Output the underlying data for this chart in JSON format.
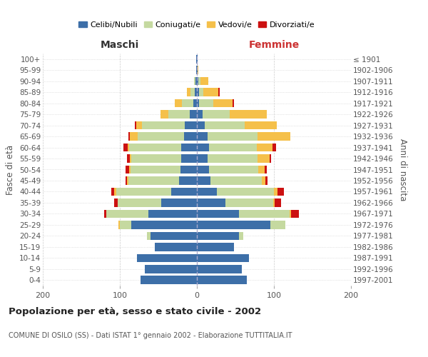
{
  "age_groups": [
    "0-4",
    "5-9",
    "10-14",
    "15-19",
    "20-24",
    "25-29",
    "30-34",
    "35-39",
    "40-44",
    "45-49",
    "50-54",
    "55-59",
    "60-64",
    "65-69",
    "70-74",
    "75-79",
    "80-84",
    "85-89",
    "90-94",
    "95-99",
    "100+"
  ],
  "birth_years": [
    "1997-2001",
    "1992-1996",
    "1987-1991",
    "1982-1986",
    "1977-1981",
    "1972-1976",
    "1967-1971",
    "1962-1966",
    "1957-1961",
    "1952-1956",
    "1947-1951",
    "1942-1946",
    "1937-1941",
    "1932-1936",
    "1927-1931",
    "1922-1926",
    "1917-1921",
    "1912-1916",
    "1907-1911",
    "1902-1906",
    "≤ 1901"
  ],
  "males": {
    "celibi": [
      73,
      68,
      78,
      55,
      60,
      85,
      63,
      46,
      33,
      23,
      21,
      20,
      20,
      17,
      16,
      9,
      5,
      3,
      2,
      1,
      1
    ],
    "coniugati": [
      0,
      0,
      0,
      0,
      5,
      15,
      55,
      57,
      72,
      66,
      65,
      65,
      68,
      60,
      55,
      28,
      14,
      5,
      2,
      0,
      0
    ],
    "vedovi": [
      0,
      0,
      0,
      0,
      0,
      2,
      0,
      0,
      2,
      2,
      2,
      2,
      2,
      10,
      8,
      10,
      10,
      5,
      0,
      0,
      0
    ],
    "divorziati": [
      0,
      0,
      0,
      0,
      0,
      0,
      2,
      4,
      4,
      2,
      5,
      4,
      5,
      2,
      2,
      0,
      0,
      0,
      0,
      0,
      0
    ]
  },
  "females": {
    "nubili": [
      65,
      58,
      68,
      48,
      55,
      95,
      55,
      37,
      26,
      18,
      16,
      14,
      16,
      14,
      10,
      7,
      3,
      3,
      2,
      1,
      1
    ],
    "coniugate": [
      0,
      0,
      0,
      0,
      5,
      20,
      65,
      62,
      74,
      66,
      64,
      65,
      62,
      65,
      52,
      36,
      18,
      5,
      3,
      0,
      0
    ],
    "vedove": [
      0,
      0,
      0,
      0,
      0,
      0,
      2,
      2,
      5,
      5,
      8,
      15,
      20,
      42,
      42,
      48,
      25,
      20,
      10,
      1,
      0
    ],
    "divorziate": [
      0,
      0,
      0,
      0,
      0,
      0,
      10,
      8,
      8,
      3,
      3,
      2,
      5,
      0,
      0,
      0,
      2,
      2,
      0,
      0,
      0
    ]
  },
  "colors": {
    "celibi": "#3d6fa8",
    "coniugati": "#c5d9a0",
    "vedovi": "#f5c04a",
    "divorziati": "#cc1111"
  },
  "title": "Popolazione per età, sesso e stato civile - 2002",
  "subtitle": "COMUNE DI OSILO (SS) - Dati ISTAT 1° gennaio 2002 - Elaborazione TUTTITALIA.IT",
  "xlabel_left": "Maschi",
  "xlabel_right": "Femmine",
  "ylabel_left": "Fasce di età",
  "ylabel_right": "Anni di nascita",
  "xlim": 200,
  "legend_labels": [
    "Celibi/Nubili",
    "Coniugati/e",
    "Vedovi/e",
    "Divorziati/e"
  ],
  "background_color": "#ffffff"
}
